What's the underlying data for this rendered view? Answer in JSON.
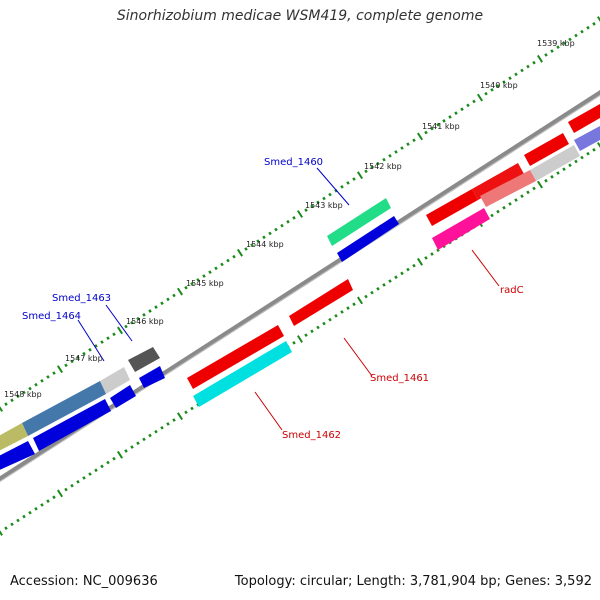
{
  "title": "Sinorhizobium medicae WSM419, complete genome",
  "accession": "Accession: NC_009636",
  "summary": "Topology: circular; Length: 3,781,904 bp; Genes: 3,592",
  "scale_ticks": [
    {
      "kbp": 1539,
      "label": "1539 kbp"
    },
    {
      "kbp": 1540,
      "label": "1540 kbp"
    },
    {
      "kbp": 1541,
      "label": "1541 kbp"
    },
    {
      "kbp": 1542,
      "label": "1542 kbp"
    },
    {
      "kbp": 1543,
      "label": "1543 kbp"
    },
    {
      "kbp": 1544,
      "label": "1544 kbp"
    },
    {
      "kbp": 1545,
      "label": "1545 kbp"
    },
    {
      "kbp": 1546,
      "label": "1546 kbp"
    },
    {
      "kbp": 1547,
      "label": "1547 kbp"
    },
    {
      "kbp": 1548,
      "label": "1548 kbp"
    }
  ],
  "gene_labels": [
    {
      "name": "Smed_1460",
      "strand": "forward",
      "color": "#0000cc"
    },
    {
      "name": "Smed_1463",
      "strand": "forward",
      "color": "#0000cc"
    },
    {
      "name": "Smed_1464",
      "strand": "forward",
      "color": "#0000cc"
    },
    {
      "name": "Smed_1461",
      "strand": "reverse",
      "color": "#cc0000"
    },
    {
      "name": "Smed_1462",
      "strand": "reverse",
      "color": "#cc0000"
    },
    {
      "name": "radC",
      "strand": "reverse",
      "color": "#cc0000"
    }
  ],
  "colors": {
    "backbone": "#777777",
    "ticks": "#1a8a1a",
    "forward_label": "#0000cc",
    "reverse_label": "#cc0000"
  }
}
